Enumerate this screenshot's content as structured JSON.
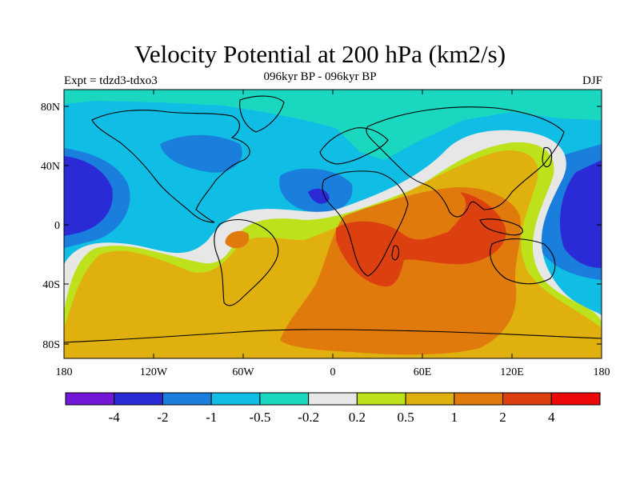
{
  "title": "Velocity Potential at 200 hPa (km2/s)",
  "subtitle": "096kyr BP - 096kyr BP",
  "left_label": "Expt = tdzd3-tdxo3",
  "right_label": "DJF",
  "y_ticks": [
    "80N",
    "40N",
    "0",
    "40S",
    "80S"
  ],
  "x_ticks": [
    "180",
    "120W",
    "60W",
    "0",
    "60E",
    "120E",
    "180"
  ],
  "colorbar": {
    "colors": [
      "#7017d8",
      "#2a2bd6",
      "#1a7fdc",
      "#10bde4",
      "#1ad8c0",
      "#e7e7e7",
      "#bde21c",
      "#e0b00e",
      "#e07a0c",
      "#dd4010",
      "#ec0808"
    ],
    "labels": [
      "-4",
      "-2",
      "-1",
      "-0.5",
      "-0.2",
      "0.2",
      "0.5",
      "1",
      "2",
      "4"
    ]
  }
}
